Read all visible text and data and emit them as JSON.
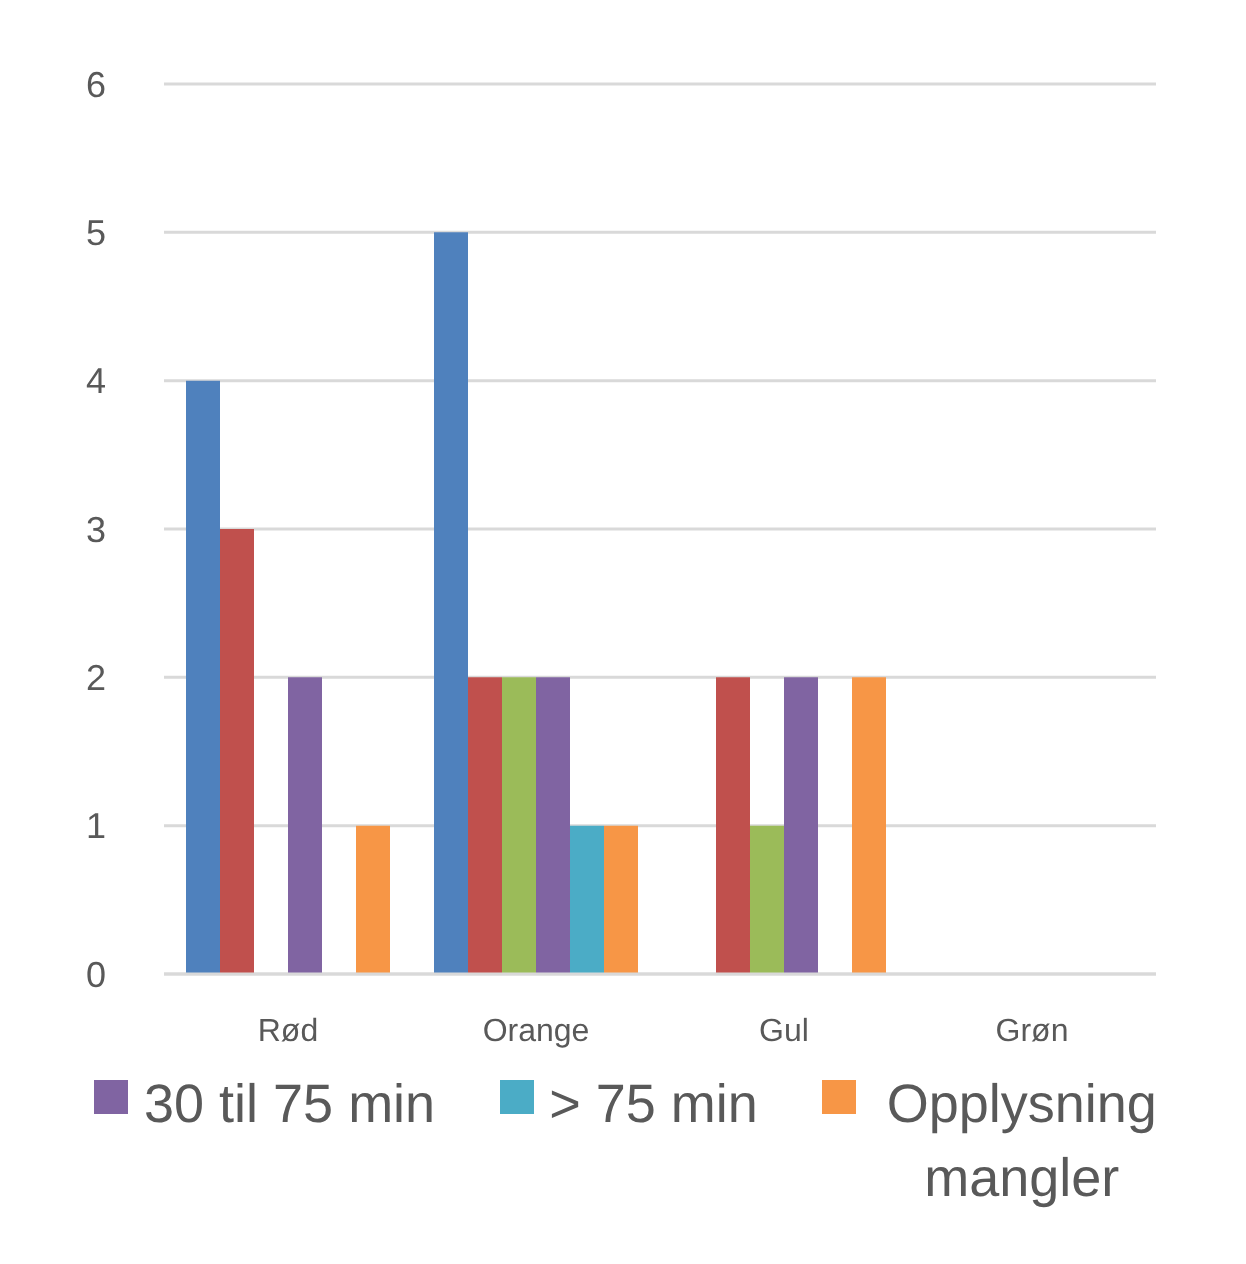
{
  "chart_data": {
    "type": "bar",
    "categories": [
      "Rød",
      "Orange",
      "Gul",
      "Grøn"
    ],
    "series": [
      {
        "color": "#4f81bd",
        "values": [
          4,
          5,
          0,
          0
        ]
      },
      {
        "color": "#c0504d",
        "values": [
          3,
          2,
          2,
          0
        ]
      },
      {
        "color": "#9bbb59",
        "values": [
          0,
          2,
          1,
          0
        ]
      },
      {
        "name": "30 til 75 min",
        "color": "#8064a2",
        "values": [
          2,
          2,
          2,
          0
        ]
      },
      {
        "name": "> 75 min",
        "color": "#4bacc6",
        "values": [
          0,
          1,
          0,
          0
        ]
      },
      {
        "name": "Opplysning mangler",
        "color": "#f79646",
        "values": [
          1,
          1,
          2,
          0
        ]
      }
    ],
    "ylim": [
      0,
      6
    ],
    "yticks": [
      0,
      1,
      2,
      3,
      4,
      5,
      6
    ],
    "grid": "y",
    "legend": "bottom"
  }
}
